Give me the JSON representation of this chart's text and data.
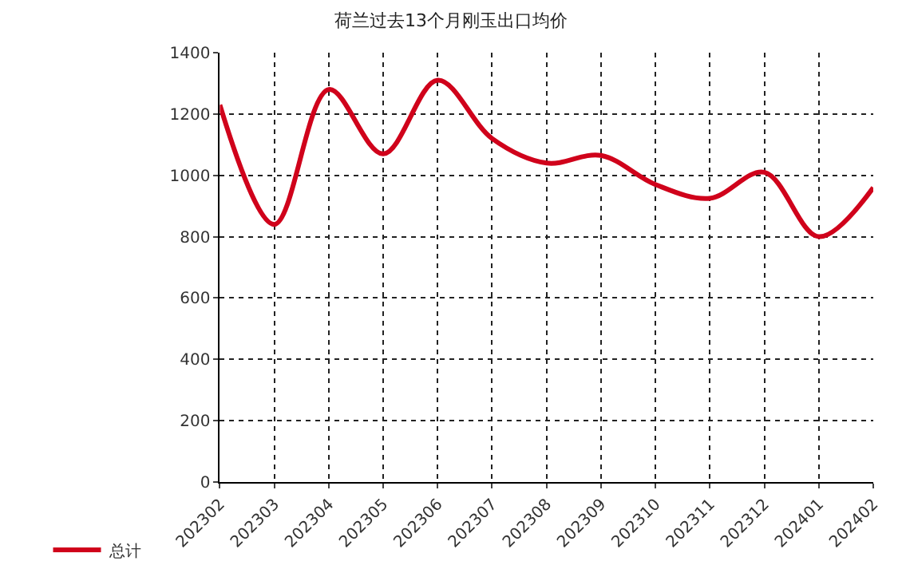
{
  "chart_data": {
    "type": "line",
    "title": "荷兰过去13个月刚玉出口均价",
    "categories": [
      "202302",
      "202303",
      "202304",
      "202305",
      "202306",
      "202307",
      "202308",
      "202309",
      "202310",
      "202311",
      "202312",
      "202401",
      "202402"
    ],
    "series": [
      {
        "name": "总计",
        "color": "#d0021b",
        "values": [
          1230,
          840,
          1280,
          1070,
          1310,
          1120,
          1040,
          1065,
          970,
          925,
          1010,
          800,
          960
        ]
      }
    ],
    "ylim": [
      0,
      1400
    ],
    "yticks": [
      0,
      200,
      400,
      600,
      800,
      1000,
      1200,
      1400
    ],
    "grid": true,
    "legend": "bottom left",
    "marker": "none",
    "line_style": "solid"
  }
}
